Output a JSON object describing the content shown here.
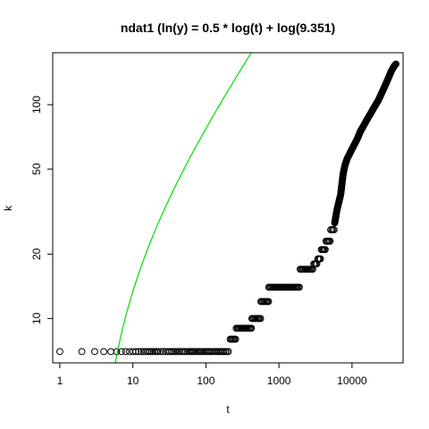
{
  "chart_data": {
    "type": "scatter",
    "title": "ndat1 (ln(y) = 0.5 * log(t) + log(9.351)",
    "xlabel": "t",
    "ylabel": "k",
    "x_scale": "log",
    "y_scale": "log",
    "xlim": [
      0.8,
      50000
    ],
    "ylim": [
      6.2,
      175
    ],
    "x_ticks": [
      1,
      10,
      100,
      1000,
      10000
    ],
    "x_tick_labels": [
      "1",
      "10",
      "100",
      "1000",
      "10000"
    ],
    "y_ticks": [
      10,
      20,
      50,
      100
    ],
    "y_tick_labels": [
      "10",
      "20",
      "50",
      "100"
    ],
    "grid": false,
    "series": [
      {
        "kind": "points",
        "marker": "open-circle",
        "color": "#000000",
        "steps": [
          {
            "t_from": 1,
            "t_to": 210,
            "k": 7
          },
          {
            "t_from": 215,
            "t_to": 255,
            "k": 8
          },
          {
            "t_from": 260,
            "t_to": 420,
            "k": 9
          },
          {
            "t_from": 425,
            "t_to": 560,
            "k": 10
          },
          {
            "t_from": 565,
            "t_to": 720,
            "k": 12
          },
          {
            "t_from": 725,
            "t_to": 1900,
            "k": 14
          },
          {
            "t_from": 1950,
            "t_to": 2900,
            "k": 17
          },
          {
            "t_from": 3000,
            "t_to": 3300,
            "k": 18
          },
          {
            "t_from": 3400,
            "t_to": 3700,
            "k": 19
          },
          {
            "t_from": 3800,
            "t_to": 4300,
            "k": 21
          },
          {
            "t_from": 4400,
            "t_to": 5000,
            "k": 23
          },
          {
            "t_from": 5100,
            "t_to": 5700,
            "k": 26
          }
        ],
        "curve": [
          [
            5800,
            28
          ],
          [
            6200,
            32
          ],
          [
            6600,
            35
          ],
          [
            7000,
            38
          ],
          [
            7300,
            43
          ],
          [
            7600,
            48
          ],
          [
            8000,
            52
          ],
          [
            8600,
            56
          ],
          [
            9300,
            59
          ],
          [
            10000,
            62
          ],
          [
            11000,
            66
          ],
          [
            12000,
            70
          ],
          [
            13000,
            75
          ],
          [
            14500,
            80
          ],
          [
            16000,
            85
          ],
          [
            18000,
            91
          ],
          [
            20000,
            97
          ],
          [
            23000,
            105
          ],
          [
            26000,
            115
          ],
          [
            29000,
            125
          ],
          [
            32000,
            135
          ],
          [
            35000,
            145
          ],
          [
            38000,
            152
          ],
          [
            40000,
            155
          ]
        ]
      },
      {
        "kind": "line",
        "color": "#00dd00",
        "formula": "k = 9.351 * sqrt(t) - 9.351 * sqrt(3)",
        "t_range": [
          3.02,
          40000
        ]
      }
    ]
  }
}
